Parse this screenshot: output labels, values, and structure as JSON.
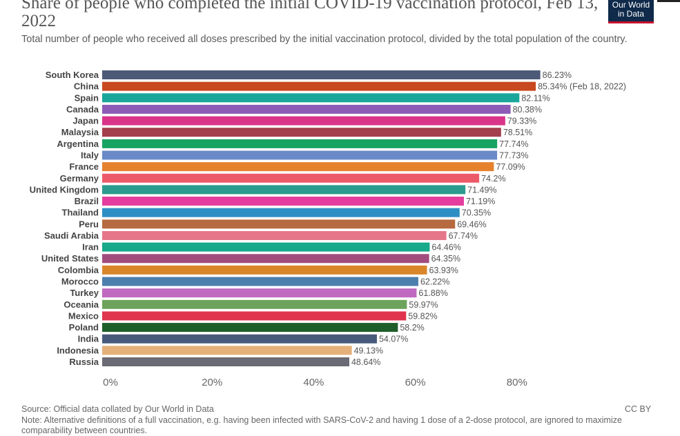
{
  "title": "Share of people who completed the initial COVID-19 vaccination protocol, Feb 13, 2022",
  "subtitle": "Total number of people who received all doses prescribed by the initial vaccination protocol, divided by the total population of the country.",
  "logo": {
    "line1": "Our World",
    "line2": "in Data"
  },
  "footer": {
    "source": "Source: Official data collated by Our World in Data",
    "license": "CC BY",
    "note": "Note: Alternative definitions of a full vaccination, e.g. having been infected with SARS-CoV-2 and having 1 dose of a 2-dose protocol, are ignored to maximize comparability between countries."
  },
  "chart_data": {
    "type": "bar",
    "orientation": "horizontal",
    "xlim": [
      0,
      90
    ],
    "xticks": [
      "0%",
      "20%",
      "40%",
      "60%",
      "80%"
    ],
    "xtick_values": [
      0,
      20,
      40,
      60,
      80
    ],
    "grid": false,
    "bars": [
      {
        "label": "South Korea",
        "value": 86.23,
        "value_label": "86.23%",
        "color": "#4c5a78"
      },
      {
        "label": "China",
        "value": 85.34,
        "value_label": "85.34% (Feb 18, 2022)",
        "color": "#c8481f"
      },
      {
        "label": "Spain",
        "value": 82.11,
        "value_label": "82.11%",
        "color": "#1aa69a"
      },
      {
        "label": "Canada",
        "value": 80.38,
        "value_label": "80.38%",
        "color": "#8d5bb7"
      },
      {
        "label": "Japan",
        "value": 79.33,
        "value_label": "79.33%",
        "color": "#d9348a"
      },
      {
        "label": "Malaysia",
        "value": 78.51,
        "value_label": "78.51%",
        "color": "#a43f4e"
      },
      {
        "label": "Argentina",
        "value": 77.74,
        "value_label": "77.74%",
        "color": "#17a362"
      },
      {
        "label": "Italy",
        "value": 77.73,
        "value_label": "77.73%",
        "color": "#6a8ac7"
      },
      {
        "label": "France",
        "value": 77.09,
        "value_label": "77.09%",
        "color": "#e6822e"
      },
      {
        "label": "Germany",
        "value": 74.2,
        "value_label": "74.2%",
        "color": "#ec5a6a"
      },
      {
        "label": "United Kingdom",
        "value": 71.49,
        "value_label": "71.49%",
        "color": "#2b9b8d"
      },
      {
        "label": "Brazil",
        "value": 71.19,
        "value_label": "71.19%",
        "color": "#e43d9e"
      },
      {
        "label": "Thailand",
        "value": 70.35,
        "value_label": "70.35%",
        "color": "#2e8fc4"
      },
      {
        "label": "Peru",
        "value": 69.46,
        "value_label": "69.46%",
        "color": "#b76a3f"
      },
      {
        "label": "Saudi Arabia",
        "value": 67.74,
        "value_label": "67.74%",
        "color": "#e5768a"
      },
      {
        "label": "Iran",
        "value": 64.46,
        "value_label": "64.46%",
        "color": "#16a98a"
      },
      {
        "label": "United States",
        "value": 64.35,
        "value_label": "64.35%",
        "color": "#a24c7e"
      },
      {
        "label": "Colombia",
        "value": 63.93,
        "value_label": "63.93%",
        "color": "#d9862b"
      },
      {
        "label": "Morocco",
        "value": 62.22,
        "value_label": "62.22%",
        "color": "#4d7fad"
      },
      {
        "label": "Turkey",
        "value": 61.88,
        "value_label": "61.88%",
        "color": "#c069c1"
      },
      {
        "label": "Oceania",
        "value": 59.97,
        "value_label": "59.97%",
        "color": "#6da35b"
      },
      {
        "label": "Mexico",
        "value": 59.82,
        "value_label": "59.82%",
        "color": "#e0344e"
      },
      {
        "label": "Poland",
        "value": 58.2,
        "value_label": "58.2%",
        "color": "#1f5e2a"
      },
      {
        "label": "India",
        "value": 54.07,
        "value_label": "54.07%",
        "color": "#485a7c"
      },
      {
        "label": "Indonesia",
        "value": 49.13,
        "value_label": "49.13%",
        "color": "#e4b07a"
      },
      {
        "label": "Russia",
        "value": 48.64,
        "value_label": "48.64%",
        "color": "#6b6b75"
      }
    ]
  }
}
